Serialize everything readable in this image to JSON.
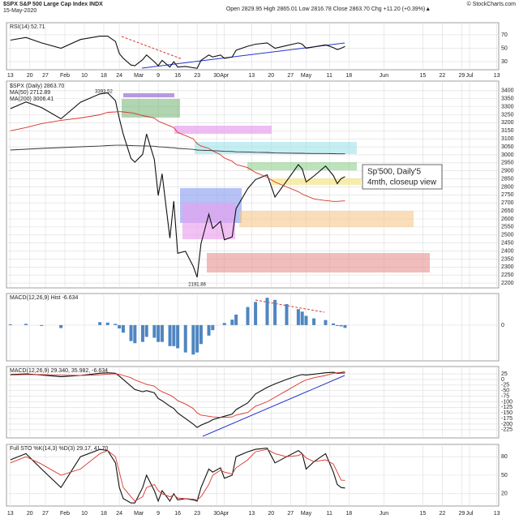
{
  "header": {
    "symbol": "$SPX S&P 500 Large Cap Index INDX",
    "date": "15-May-2020",
    "quote": "Open 2829.95 High 2865.01 Low 2816.78 Close 2863.70 Chg +11.20 (+0.39%)▲",
    "copyright": "© StockCharts.com"
  },
  "annotation": [
    "Sp'500, Daily'5",
    "4mth, closeup view"
  ],
  "chart_data": [
    {
      "type": "line",
      "title": "RSI(14) 52.71",
      "x": [
        0,
        4,
        8,
        13,
        18,
        23,
        25,
        27,
        28,
        29,
        31,
        32,
        34,
        35,
        37,
        38,
        39,
        41,
        42,
        43,
        45,
        47,
        48,
        49,
        51,
        52,
        54,
        55,
        57,
        58,
        61,
        63,
        66,
        68,
        71,
        74,
        75,
        76,
        78,
        81,
        83,
        84,
        85,
        86
      ],
      "series": [
        {
          "color": "#111111",
          "values": [
            62,
            66,
            58,
            50,
            63,
            68,
            68,
            60,
            42,
            35,
            25,
            24,
            33,
            40,
            30,
            24,
            32,
            22,
            30,
            22,
            23,
            21,
            20,
            32,
            40,
            37,
            40,
            35,
            37,
            47,
            53,
            56,
            58,
            50,
            54,
            58,
            56,
            50,
            52,
            55,
            51,
            48,
            50,
            52.71
          ]
        }
      ],
      "xlim": [
        -1,
        125.5
      ],
      "ylim": [
        18,
        88
      ],
      "yticks": [
        30,
        50,
        70
      ],
      "xticks": [
        {
          "value": 0,
          "label": "13"
        },
        {
          "value": 5,
          "label": "20"
        },
        {
          "value": 9,
          "label": "27"
        },
        {
          "value": 14,
          "label": "Feb"
        },
        {
          "value": 19,
          "label": "10"
        },
        {
          "value": 24,
          "label": "18"
        },
        {
          "value": 28,
          "label": "24"
        },
        {
          "value": 33,
          "label": "Mar"
        },
        {
          "value": 38,
          "label": "9"
        },
        {
          "value": 43,
          "label": "16"
        },
        {
          "value": 48,
          "label": "23"
        },
        {
          "value": 53,
          "label": "30"
        },
        {
          "value": 55,
          "label": "Apr"
        },
        {
          "value": 62,
          "label": "13"
        },
        {
          "value": 67,
          "label": "20"
        },
        {
          "value": 72,
          "label": "27"
        },
        {
          "value": 76,
          "label": "May"
        },
        {
          "value": 82,
          "label": "11"
        },
        {
          "value": 87,
          "label": "18"
        },
        {
          "value": 96,
          "label": "Jun"
        },
        {
          "value": 106,
          "label": "15"
        },
        {
          "value": 111,
          "label": "22"
        },
        {
          "value": 116,
          "label": "29"
        },
        {
          "value": 118,
          "label": "Jul"
        },
        {
          "value": 125,
          "label": "13"
        }
      ]
    },
    {
      "type": "line",
      "x": [
        0,
        4,
        8,
        13,
        18,
        23,
        25,
        27,
        28,
        29,
        31,
        32,
        34,
        35,
        37,
        38,
        39,
        41,
        42,
        43,
        45,
        47,
        48,
        49,
        51,
        52,
        54,
        55,
        57,
        58,
        61,
        63,
        66,
        68,
        71,
        74,
        75,
        76,
        78,
        81,
        83,
        84,
        85,
        86
      ],
      "series": [
        {
          "name": "$SPX (Daily) 2863.70",
          "color": "#111111",
          "values": [
            3288,
            3330,
            3295,
            3225,
            3328,
            3380,
            3386,
            3337,
            3226,
            3128,
            2978,
            2954,
            3003,
            3130,
            2972,
            2746,
            2882,
            2480,
            2711,
            2386,
            2398,
            2304,
            2237,
            2447,
            2630,
            2541,
            2585,
            2470,
            2488,
            2664,
            2789,
            2846,
            2875,
            2737,
            2837,
            2939,
            2912,
            2830,
            2868,
            2930,
            2870,
            2820,
            2852,
            2863.7
          ]
        },
        {
          "name": "MA(50) 2712.89",
          "color": "#d9342b",
          "values": [
            3150,
            3170,
            3195,
            3215,
            3230,
            3250,
            3265,
            3268,
            3270,
            3268,
            3262,
            3258,
            3245,
            3240,
            3230,
            3210,
            3200,
            3180,
            3170,
            3140,
            3120,
            3100,
            3070,
            3055,
            3040,
            3025,
            3000,
            2980,
            2960,
            2940,
            2920,
            2890,
            2860,
            2830,
            2800,
            2770,
            2755,
            2745,
            2725,
            2715,
            2710,
            2710,
            2712,
            2712.89
          ]
        },
        {
          "name": "MA(200) 3006.41",
          "color": "#333333",
          "values": [
            3030,
            3035,
            3040,
            3045,
            3050,
            3055,
            3058,
            3060,
            3060,
            3060,
            3058,
            3057,
            3056,
            3056,
            3054,
            3050,
            3049,
            3045,
            3044,
            3040,
            3037,
            3034,
            3030,
            3029,
            3027,
            3026,
            3024,
            3022,
            3021,
            3019,
            3018,
            3016,
            3015,
            3012,
            3011,
            3010,
            3010,
            3009,
            3008,
            3008,
            3007,
            3006,
            3006,
            3006.41
          ]
        }
      ],
      "annotations": [
        {
          "x": 24,
          "y": 3393.52,
          "label": "3393.52"
        },
        {
          "x": 48,
          "y": 2191.86,
          "label": "2191.86"
        }
      ],
      "xlim": [
        -1,
        125.5
      ],
      "ylim": [
        2170,
        3460
      ],
      "yticks": [
        2200,
        2250,
        2300,
        2350,
        2400,
        2450,
        2500,
        2550,
        2600,
        2650,
        2700,
        2750,
        2800,
        2850,
        2900,
        2950,
        3000,
        3050,
        3100,
        3150,
        3200,
        3250,
        3300,
        3350,
        3400
      ]
    },
    {
      "type": "bar",
      "title": "MACD(12,26,9) Hist -6.634",
      "x": [
        0,
        4,
        8,
        13,
        18,
        23,
        25,
        27,
        28,
        29,
        31,
        32,
        34,
        35,
        37,
        38,
        39,
        41,
        42,
        43,
        45,
        47,
        48,
        49,
        51,
        52,
        54,
        55,
        57,
        58,
        61,
        63,
        66,
        68,
        71,
        74,
        75,
        76,
        78,
        81,
        83,
        84,
        85,
        86
      ],
      "color": "#4f86c0",
      "values": [
        2,
        3,
        -2,
        -7,
        0,
        7,
        6,
        3,
        -8,
        -18,
        -38,
        -43,
        -40,
        -28,
        -30,
        -40,
        -40,
        -50,
        -50,
        -55,
        -65,
        -70,
        -65,
        -45,
        -25,
        -12,
        0,
        5,
        13,
        25,
        43,
        55,
        65,
        60,
        50,
        38,
        32,
        22,
        16,
        12,
        4,
        -2,
        -3,
        -6.634
      ],
      "xlim": [
        -1,
        125.5
      ],
      "ylim": [
        -85,
        75
      ],
      "yticks": [
        0
      ]
    },
    {
      "type": "line",
      "title": "MACD(12,26,9) 29.340, 35.982, -6.634",
      "x": [
        0,
        4,
        8,
        13,
        18,
        23,
        25,
        27,
        28,
        29,
        31,
        32,
        34,
        35,
        37,
        38,
        39,
        41,
        42,
        43,
        45,
        47,
        48,
        49,
        51,
        52,
        54,
        55,
        57,
        58,
        61,
        63,
        66,
        68,
        71,
        74,
        75,
        76,
        78,
        81,
        83,
        84,
        85,
        86
      ],
      "series": [
        {
          "color": "#111111",
          "values": [
            22,
            25,
            20,
            12,
            18,
            28,
            30,
            28,
            15,
            0,
            -30,
            -45,
            -55,
            -50,
            -60,
            -85,
            -95,
            -120,
            -130,
            -150,
            -175,
            -200,
            -215,
            -205,
            -190,
            -180,
            -170,
            -165,
            -155,
            -135,
            -105,
            -65,
            -35,
            -20,
            0,
            18,
            22,
            20,
            24,
            30,
            32,
            28,
            29,
            29.34
          ]
        },
        {
          "color": "#d9342b",
          "values": [
            20,
            22,
            22,
            19,
            18,
            21,
            24,
            25,
            23,
            18,
            8,
            -2,
            -15,
            -22,
            -30,
            -45,
            -55,
            -70,
            -80,
            -95,
            -110,
            -130,
            -150,
            -160,
            -165,
            -168,
            -170,
            -170,
            -168,
            -160,
            -148,
            -120,
            -100,
            -80,
            -50,
            -20,
            -10,
            -2,
            8,
            18,
            28,
            30,
            32,
            35.982
          ]
        }
      ],
      "xlim": [
        -1,
        125.5
      ],
      "ylim": [
        -262,
        58
      ],
      "yticks": [
        -225,
        -200,
        -175,
        -150,
        -125,
        -100,
        -75,
        -50,
        -25,
        0,
        25
      ]
    },
    {
      "type": "line",
      "title": "Full STO %K(14,3) %D(3) 29.17, 41.70",
      "x": [
        0,
        4,
        8,
        13,
        18,
        23,
        25,
        27,
        28,
        29,
        31,
        32,
        34,
        35,
        37,
        38,
        39,
        41,
        42,
        43,
        45,
        47,
        48,
        49,
        51,
        52,
        54,
        55,
        57,
        58,
        61,
        63,
        66,
        68,
        71,
        74,
        75,
        76,
        78,
        81,
        83,
        84,
        85,
        86
      ],
      "series": [
        {
          "color": "#111111",
          "values": [
            75,
            85,
            60,
            30,
            80,
            92,
            90,
            70,
            30,
            12,
            5,
            5,
            30,
            50,
            25,
            8,
            25,
            8,
            20,
            10,
            12,
            10,
            8,
            30,
            60,
            55,
            62,
            45,
            50,
            80,
            88,
            92,
            94,
            70,
            80,
            90,
            85,
            60,
            72,
            85,
            55,
            35,
            30,
            29.17
          ]
        },
        {
          "color": "#d9342b",
          "values": [
            70,
            80,
            68,
            50,
            60,
            85,
            90,
            80,
            55,
            30,
            15,
            8,
            15,
            30,
            35,
            25,
            20,
            15,
            18,
            13,
            12,
            11,
            10,
            15,
            35,
            50,
            58,
            55,
            52,
            62,
            75,
            88,
            92,
            85,
            80,
            82,
            85,
            78,
            72,
            75,
            68,
            55,
            42,
            41.7
          ]
        }
      ],
      "xlim": [
        -1,
        125.5
      ],
      "ylim": [
        0,
        100
      ],
      "yticks": [
        20,
        50,
        80
      ],
      "xticks": [
        {
          "value": 0,
          "label": "13"
        },
        {
          "value": 5,
          "label": "20"
        },
        {
          "value": 9,
          "label": "27"
        },
        {
          "value": 14,
          "label": "Feb"
        },
        {
          "value": 19,
          "label": "10"
        },
        {
          "value": 24,
          "label": "18"
        },
        {
          "value": 28,
          "label": "24"
        },
        {
          "value": 33,
          "label": "Mar"
        },
        {
          "value": 38,
          "label": "9"
        },
        {
          "value": 43,
          "label": "16"
        },
        {
          "value": 48,
          "label": "23"
        },
        {
          "value": 53,
          "label": "30"
        },
        {
          "value": 55,
          "label": "Apr"
        },
        {
          "value": 62,
          "label": "13"
        },
        {
          "value": 67,
          "label": "20"
        },
        {
          "value": 72,
          "label": "27"
        },
        {
          "value": 76,
          "label": "May"
        },
        {
          "value": 82,
          "label": "11"
        },
        {
          "value": 87,
          "label": "18"
        },
        {
          "value": 96,
          "label": "Jun"
        },
        {
          "value": 106,
          "label": "15"
        },
        {
          "value": 111,
          "label": "22"
        },
        {
          "value": 116,
          "label": "29"
        },
        {
          "value": 118,
          "label": "Jul"
        },
        {
          "value": 125,
          "label": "13"
        }
      ]
    }
  ]
}
